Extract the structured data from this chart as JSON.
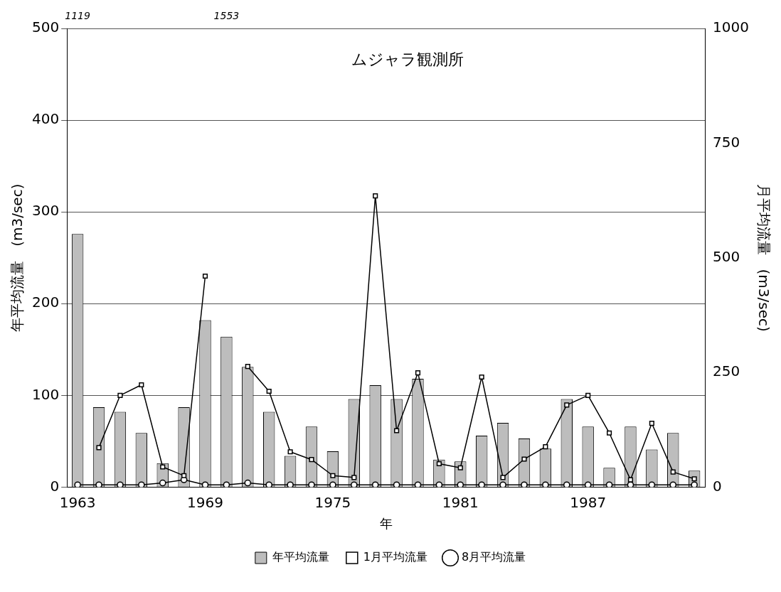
{
  "chart_data": {
    "type": "bar",
    "title": "ムジャラ観測所",
    "xlabel": "年",
    "ylabel": "年平均流量　(m3/sec)",
    "y2label": "月平均流量　(m3/sec)",
    "categories": [
      "1963",
      null,
      null,
      null,
      null,
      null,
      "1969",
      null,
      null,
      null,
      null,
      null,
      "1975",
      null,
      null,
      null,
      null,
      null,
      "1981",
      null,
      null,
      null,
      null,
      null,
      "1987",
      null,
      null,
      null,
      null,
      null
    ],
    "series": [
      {
        "name": "年平均流量",
        "color": "#bdbdbd",
        "values": [
          276,
          87,
          82,
          59,
          26,
          87,
          182,
          164,
          131,
          82,
          34,
          66,
          39,
          96,
          111,
          96,
          118,
          30,
          28,
          56,
          70,
          53,
          42,
          96,
          66,
          21,
          66,
          41,
          59,
          18
        ]
      },
      {
        "name": "1月平均流量",
        "type": "line",
        "axis": "y2",
        "color": "#000000",
        "marker": "square",
        "values": [
          null,
          86,
          200,
          223,
          44,
          25,
          460,
          null,
          263,
          209,
          77,
          60,
          25,
          21,
          635,
          123,
          249,
          51,
          42,
          240,
          21,
          61,
          88,
          179,
          200,
          118,
          16,
          139,
          33,
          18
        ]
      },
      {
        "name": "8月平均流量",
        "type": "line",
        "axis": "y2",
        "color": "#000000",
        "marker": "circle",
        "values": [
          5,
          5,
          5,
          5,
          9,
          16,
          5,
          5,
          9,
          5,
          5,
          5,
          5,
          5,
          5,
          5,
          5,
          5,
          5,
          5,
          5,
          5,
          5,
          5,
          5,
          5,
          5,
          5,
          5,
          5
        ]
      }
    ],
    "ylim": [
      0,
      500
    ],
    "yticks": [
      0,
      100,
      200,
      300,
      400,
      500
    ],
    "y2lim": [
      0,
      1000
    ],
    "y2ticks": [
      0,
      250,
      500,
      750,
      1000
    ],
    "grid": "y",
    "legend": "bottom",
    "line_style": "solid",
    "annotations": [
      "1119",
      "1553"
    ]
  }
}
